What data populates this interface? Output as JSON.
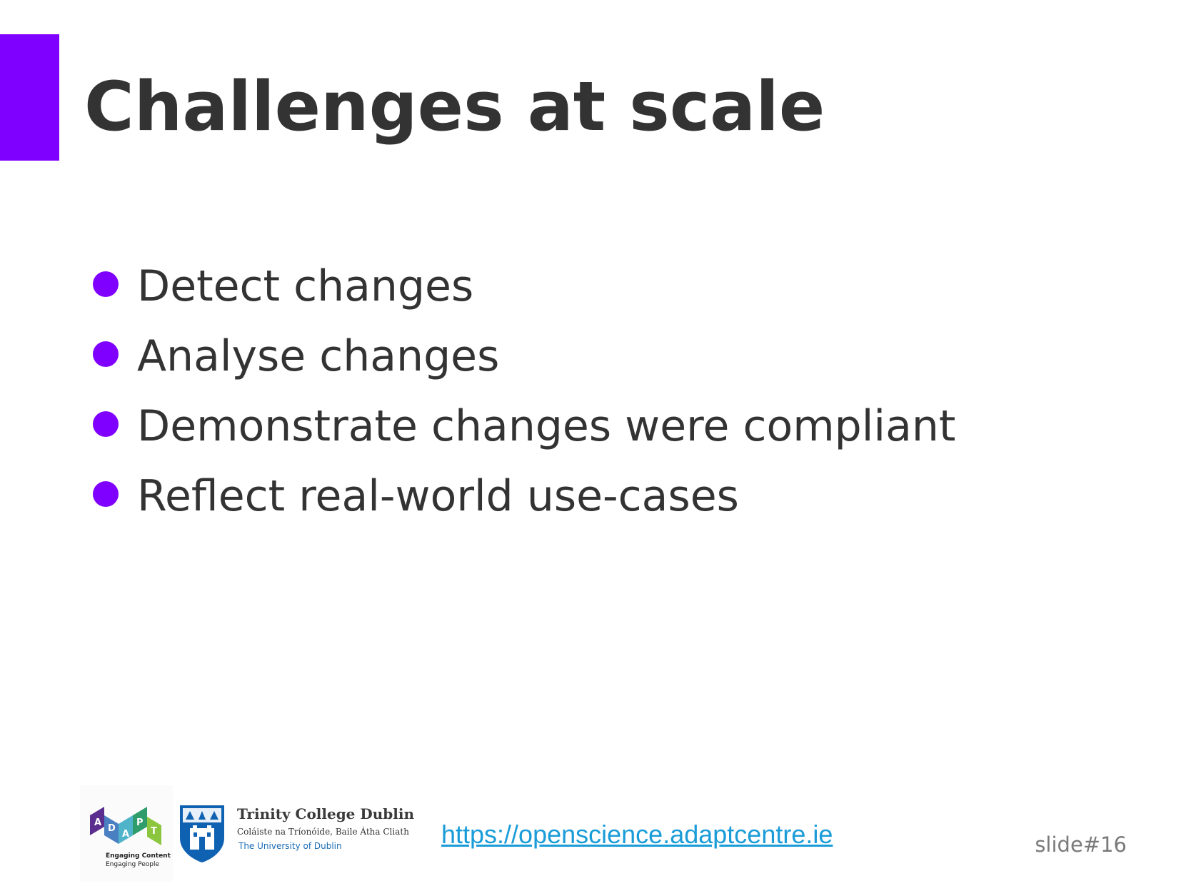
{
  "slide": {
    "title": "Challenges at scale",
    "accent_color": "#7f00ff",
    "bullets": [
      {
        "text": "Detect changes"
      },
      {
        "text": "Analyse changes"
      },
      {
        "text": "Demonstrate changes were compliant"
      },
      {
        "text": "Reflect real-world use-cases"
      }
    ]
  },
  "footer": {
    "adapt_logo": {
      "letters": [
        "A",
        "D",
        "A",
        "P",
        "T"
      ],
      "tagline_1": "Engaging Content",
      "tagline_2": "Engaging People"
    },
    "tcd_logo": {
      "name": "Trinity College Dublin",
      "irish_name": "Coláiste na Tríonóide, Baile Átha Cliath",
      "subtitle": "The University of Dublin"
    },
    "link": "https://openscience.adaptcentre.ie",
    "slide_number": "slide#16"
  }
}
